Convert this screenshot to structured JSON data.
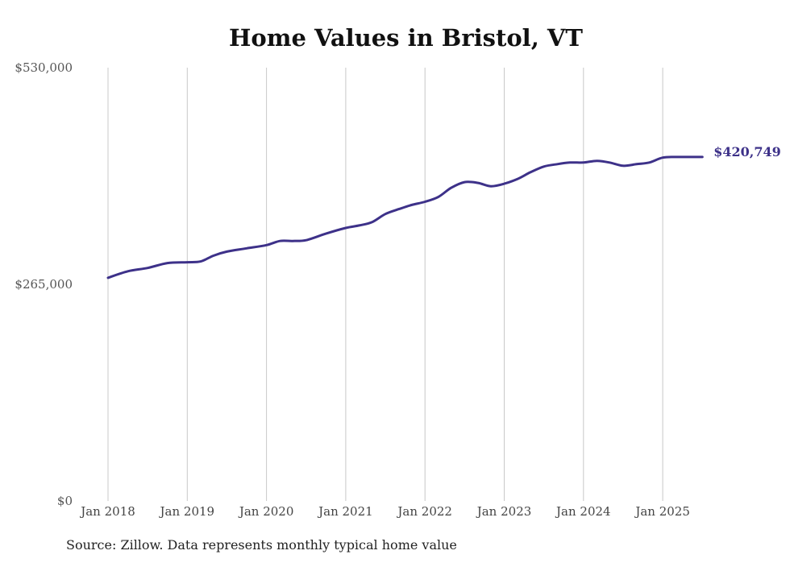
{
  "title": "Home Values in Bristol, VT",
  "source": "Source: Zillow. Data represents monthly typical home value",
  "chart_data": {
    "type": "line",
    "title": "Home Values in Bristol, VT",
    "xlabel": "",
    "ylabel": "",
    "ylim": [
      0,
      530000
    ],
    "y_ticks": [
      "$0",
      "$265,000",
      "$530,000"
    ],
    "y_tick_values": [
      0,
      265000,
      530000
    ],
    "x_ticks": [
      "Jan 2018",
      "Jan 2019",
      "Jan 2020",
      "Jan 2021",
      "Jan 2022",
      "Jan 2023",
      "Jan 2024",
      "Jan 2025"
    ],
    "x_tick_values": [
      2018,
      2019,
      2020,
      2021,
      2022,
      2023,
      2024,
      2025
    ],
    "xlim": [
      2018,
      2025.5
    ],
    "grid": "vertical",
    "line_color": "#3d3189",
    "end_label": "$420,749",
    "series": [
      {
        "x": [
          2018.0,
          2018.25,
          2018.5,
          2018.75,
          2019.0,
          2019.17,
          2019.33,
          2019.5,
          2019.75,
          2020.0,
          2020.17,
          2020.33,
          2020.5,
          2020.75,
          2021.0,
          2021.17,
          2021.33,
          2021.5,
          2021.67,
          2021.83,
          2022.0,
          2022.17,
          2022.33,
          2022.5,
          2022.67,
          2022.83,
          2023.0,
          2023.17,
          2023.33,
          2023.5,
          2023.67,
          2023.83,
          2024.0,
          2024.17,
          2024.33,
          2024.5,
          2024.67,
          2024.83,
          2025.0,
          2025.17,
          2025.33,
          2025.5
        ],
        "y": [
          273000,
          281000,
          285000,
          291000,
          292000,
          293000,
          300000,
          305000,
          309000,
          313000,
          318000,
          318000,
          319000,
          327000,
          334000,
          337000,
          341000,
          351000,
          357000,
          362000,
          366000,
          372000,
          383000,
          390000,
          389000,
          385000,
          388000,
          394000,
          402000,
          409000,
          412000,
          414000,
          414000,
          416000,
          414000,
          410000,
          412000,
          414000,
          420000,
          420749,
          420749,
          420749
        ]
      }
    ]
  }
}
